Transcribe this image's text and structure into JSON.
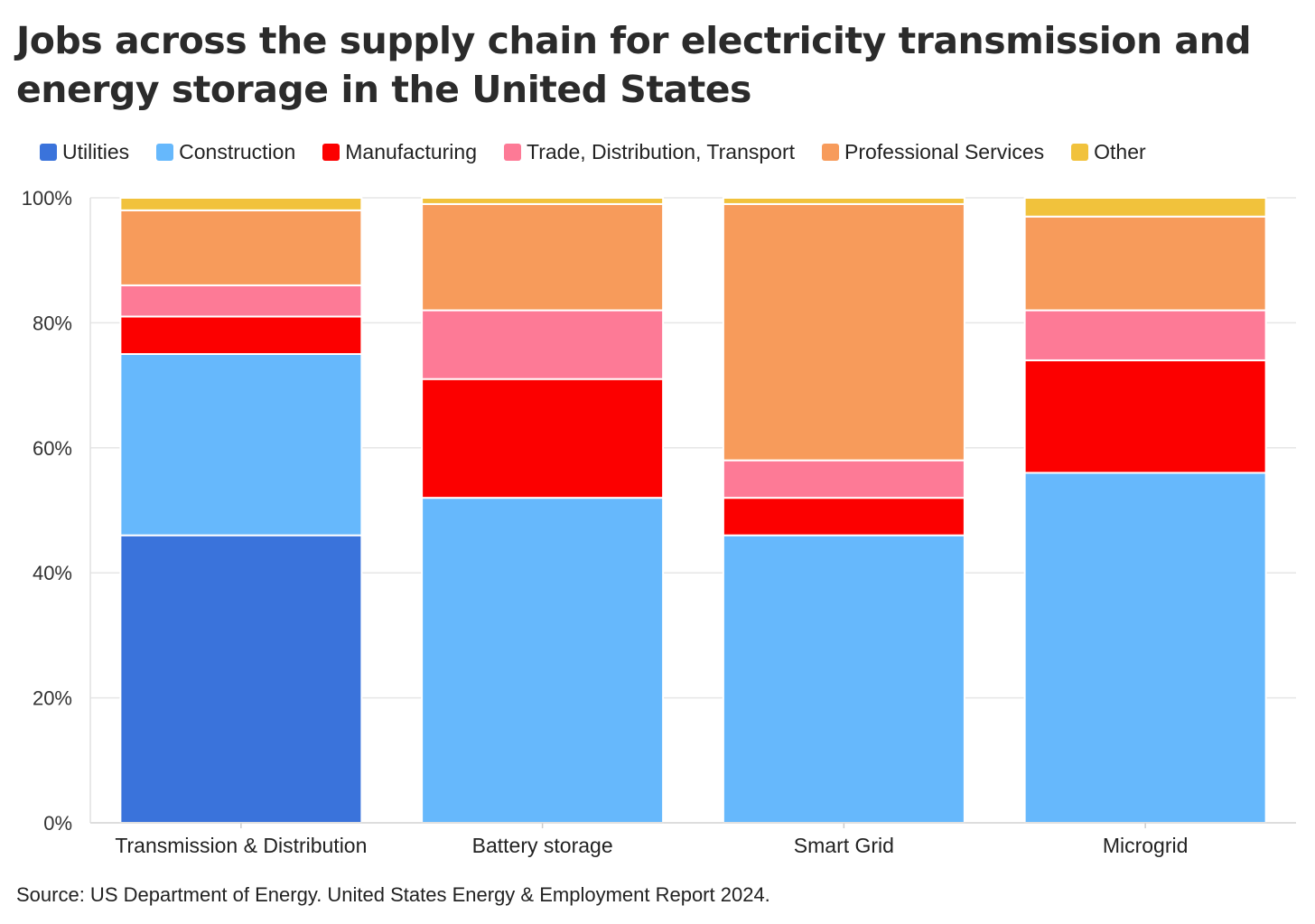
{
  "title": "Jobs across the supply chain for electricity transmission and energy storage in the United States",
  "source": "Source: US Department of Energy. United States Energy & Employment Report 2024.",
  "legend": [
    {
      "label": "Utilities",
      "color": "#3a73db"
    },
    {
      "label": "Construction",
      "color": "#66b8fc"
    },
    {
      "label": "Manufacturing",
      "color": "#fc0000"
    },
    {
      "label": "Trade, Distribution, Transport",
      "color": "#fd7a96"
    },
    {
      "label": "Professional Services",
      "color": "#f79b5b"
    },
    {
      "label": "Other",
      "color": "#f1c23c"
    }
  ],
  "chart_data": {
    "type": "bar",
    "stacked": true,
    "categories": [
      "Transmission & Distribution",
      "Battery storage",
      "Smart Grid",
      "Microgrid"
    ],
    "series": [
      {
        "name": "Utilities",
        "color": "#3a73db",
        "values": [
          46,
          0,
          0,
          0
        ]
      },
      {
        "name": "Construction",
        "color": "#66b8fc",
        "values": [
          29,
          52,
          46,
          56
        ]
      },
      {
        "name": "Manufacturing",
        "color": "#fc0000",
        "values": [
          6,
          19,
          6,
          18
        ]
      },
      {
        "name": "Trade, Distribution, Transport",
        "color": "#fd7a96",
        "values": [
          5,
          11,
          6,
          8
        ]
      },
      {
        "name": "Professional Services",
        "color": "#f79b5b",
        "values": [
          12,
          17,
          41,
          15
        ]
      },
      {
        "name": "Other",
        "color": "#f1c23c",
        "values": [
          2,
          1,
          1,
          3
        ]
      }
    ],
    "ylim": [
      0,
      100
    ],
    "yticks": [
      "0%",
      "20%",
      "40%",
      "60%",
      "80%",
      "100%"
    ],
    "grid": true,
    "legend_position": "top-left"
  }
}
